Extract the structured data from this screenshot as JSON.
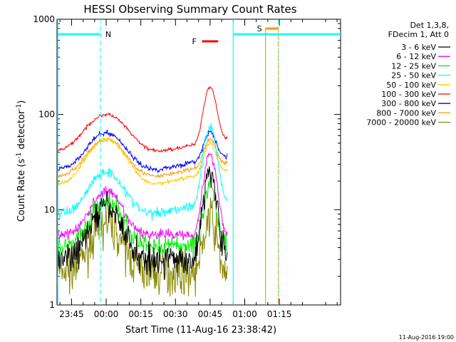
{
  "chart_data": {
    "type": "line",
    "title": "HESSI Observing Summary Count Rates",
    "xlabel": "Start Time (11-Aug-16 23:38:42)",
    "ylabel_main": "Count Rate (s",
    "ylabel_sup1": "-1",
    "ylabel_mid": " detector",
    "ylabel_sup2": "-1",
    "ylabel_end": ")",
    "yscale": "log",
    "ylim": [
      1,
      1000
    ],
    "xlim_minutes": [
      -21.3,
      101.5
    ],
    "x_ticks": [
      {
        "label": "23:45",
        "minutes": -15
      },
      {
        "label": "00:00",
        "minutes": 0
      },
      {
        "label": "00:15",
        "minutes": 15
      },
      {
        "label": "00:30",
        "minutes": 30
      },
      {
        "label": "00:45",
        "minutes": 45
      },
      {
        "label": "01:00",
        "minutes": 60
      },
      {
        "label": "01:15",
        "minutes": 75
      }
    ],
    "y_ticks": [
      {
        "label": "1",
        "value": 1
      },
      {
        "label": "10",
        "value": 10
      },
      {
        "label": "100",
        "value": 100
      },
      {
        "label": "1000",
        "value": 1000
      }
    ],
    "legend_header": [
      "Det 1,3,8,",
      "FDecim 1, Att 0"
    ],
    "series": [
      {
        "name": "3 - 6 keV",
        "color": "#000000"
      },
      {
        "name": "6 - 12 keV",
        "color": "#ff00ff"
      },
      {
        "name": "12 - 25 keV",
        "color": "#00ee00"
      },
      {
        "name": "25 - 50 keV",
        "color": "#00ffff"
      },
      {
        "name": "50 - 100 keV",
        "color": "#ffcc00"
      },
      {
        "name": "100 - 300 keV",
        "color": "#ff0000"
      },
      {
        "name": "300 - 800 keV",
        "color": "#0000ff"
      },
      {
        "name": "800 - 7000 keV",
        "color": "#ff9900"
      },
      {
        "name": "7000 - 20000 keV",
        "color": "#888800"
      }
    ],
    "night_label": "N",
    "flare_label": "F",
    "saa_label": "S",
    "footer_date": "11-Aug-2016 19:00"
  }
}
